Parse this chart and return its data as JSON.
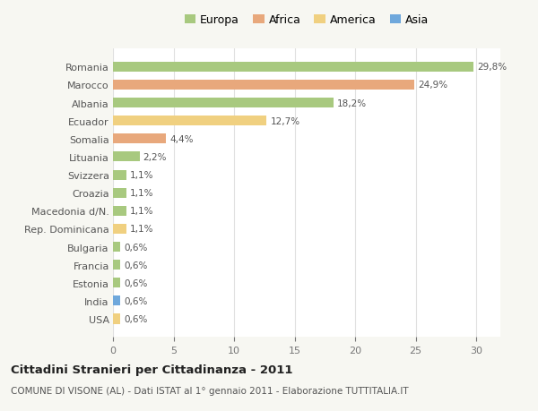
{
  "countries": [
    "Romania",
    "Marocco",
    "Albania",
    "Ecuador",
    "Somalia",
    "Lituania",
    "Svizzera",
    "Croazia",
    "Macedonia d/N.",
    "Rep. Dominicana",
    "Bulgaria",
    "Francia",
    "Estonia",
    "India",
    "USA"
  ],
  "values": [
    29.8,
    24.9,
    18.2,
    12.7,
    4.4,
    2.2,
    1.1,
    1.1,
    1.1,
    1.1,
    0.6,
    0.6,
    0.6,
    0.6,
    0.6
  ],
  "labels": [
    "29,8%",
    "24,9%",
    "18,2%",
    "12,7%",
    "4,4%",
    "2,2%",
    "1,1%",
    "1,1%",
    "1,1%",
    "1,1%",
    "0,6%",
    "0,6%",
    "0,6%",
    "0,6%",
    "0,6%"
  ],
  "continents": [
    "Europa",
    "Africa",
    "Europa",
    "America",
    "Africa",
    "Europa",
    "Europa",
    "Europa",
    "Europa",
    "America",
    "Europa",
    "Europa",
    "Europa",
    "Asia",
    "America"
  ],
  "colors": {
    "Europa": "#a8c97f",
    "Africa": "#e8a87c",
    "America": "#f0d080",
    "Asia": "#6fa8dc"
  },
  "title": "Cittadini Stranieri per Cittadinanza - 2011",
  "subtitle": "COMUNE DI VISONE (AL) - Dati ISTAT al 1° gennaio 2011 - Elaborazione TUTTITALIA.IT",
  "xlim": [
    0,
    32
  ],
  "xticks": [
    0,
    5,
    10,
    15,
    20,
    25,
    30
  ],
  "background_color": "#f7f7f2",
  "bar_background": "#ffffff",
  "grid_color": "#e0e0e0",
  "bar_height": 0.55
}
